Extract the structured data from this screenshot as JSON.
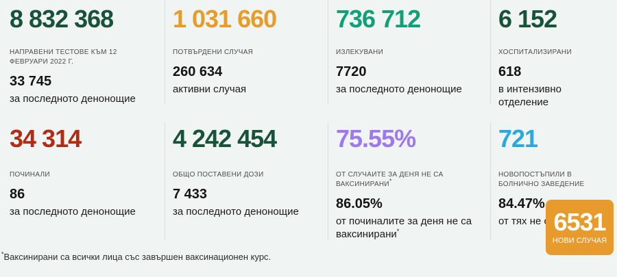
{
  "page": {
    "background": "#f0f4f2",
    "footnote_asterisk": "*",
    "footnote": "Ваксинирани са всички лица със завършен ваксинационен курс."
  },
  "colors": {
    "dark_green": "#17523a",
    "orange": "#e69c28",
    "teal": "#10a077",
    "red": "#b02c15",
    "purple": "#9d78ef",
    "blue": "#27a9e3",
    "badge_orange": "#e79b2d",
    "divider": "#d9e1de"
  },
  "cards": [
    {
      "id": "tests-total",
      "value": "8 832 368",
      "color": "#17523a",
      "label": "НАПРАВЕНИ ТЕСТОВЕ КЪМ 12 ФЕВРУАРИ 2022 Г.",
      "sub_value": "33 745",
      "sub_label": "за последното денонощие"
    },
    {
      "id": "confirmed-cases",
      "value": "1 031 660",
      "color": "#e69c28",
      "label": "ПОТВЪРДЕНИ СЛУЧАЯ",
      "sub_value": "260 634",
      "sub_label": "активни случая"
    },
    {
      "id": "recovered",
      "value": "736 712",
      "color": "#10a077",
      "label": "ИЗЛЕКУВАНИ",
      "sub_value": "7720",
      "sub_label": "за последното денонощие"
    },
    {
      "id": "hospitalized",
      "value": "6 152",
      "color": "#17523a",
      "label": "ХОСПИТАЛИЗИРАНИ",
      "sub_value": "618",
      "sub_label": "в интензивно отделение"
    },
    {
      "id": "deceased",
      "value": "34 314",
      "color": "#b02c15",
      "label": "ПОЧИНАЛИ",
      "sub_value": "86",
      "sub_label": "за последното денонощие"
    },
    {
      "id": "vaccine-doses",
      "value": "4 242 454",
      "color": "#17523a",
      "label": "ОБЩО ПОСТАВЕНИ ДОЗИ",
      "sub_value": "7 433",
      "sub_label": "за последното денонощие"
    },
    {
      "id": "unvaccinated-share",
      "value": "75.55%",
      "color": "#9d78ef",
      "label": "ОТ СЛУЧАИТЕ ЗА ДЕНЯ НЕ СА ВАКСИНИРАНИ",
      "label_asterisk": "*",
      "sub_value": "86.05%",
      "sub_label": "от починалите за деня не са ваксинирани",
      "sub_label_asterisk": "*"
    },
    {
      "id": "new-hospital-admissions",
      "value": "721",
      "color": "#27a9e3",
      "label": "НОВОПОСТЪПИЛИ В БОЛНИЧНО ЗАВЕДЕНИЕ",
      "sub_value": "84.47%",
      "sub_label": "от тях не са"
    }
  ],
  "badge": {
    "value": "6531",
    "label": "НОВИ СЛУЧАЯ",
    "background": "#e79b2d"
  }
}
